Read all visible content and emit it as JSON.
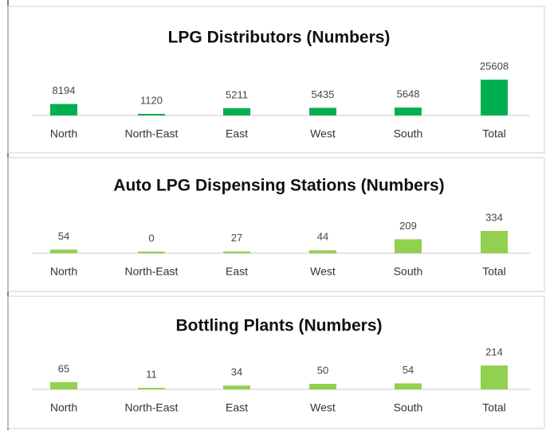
{
  "chart_data": [
    {
      "type": "bar",
      "title": "LPG Distributors (Numbers)",
      "categories": [
        "North",
        "North-East",
        "East",
        "West",
        "South",
        "Total"
      ],
      "values": [
        8194,
        1120,
        5211,
        5435,
        5648,
        25608
      ],
      "color": "#00b050"
    },
    {
      "type": "bar",
      "title": "Auto LPG Dispensing Stations (Numbers)",
      "categories": [
        "North",
        "North-East",
        "East",
        "West",
        "South",
        "Total"
      ],
      "values": [
        54,
        0,
        27,
        44,
        209,
        334
      ],
      "color": "#92d050"
    },
    {
      "type": "bar",
      "title": "Bottling Plants (Numbers)",
      "categories": [
        "North",
        "North-East",
        "East",
        "West",
        "South",
        "Total"
      ],
      "values": [
        65,
        11,
        34,
        50,
        54,
        214
      ],
      "color": "#92d050"
    }
  ]
}
